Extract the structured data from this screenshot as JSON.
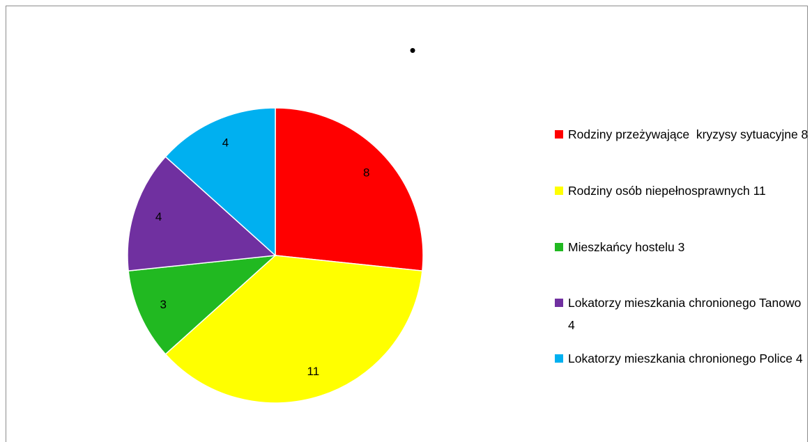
{
  "chart_data": {
    "type": "pie",
    "title": "•",
    "categories": [
      "Rodziny przeżywające  kryzysy sytuacyjne 8",
      "Rodziny osób niepełnosprawnych 11",
      "Mieszkańcy hostelu 3",
      "Lokatorzy mieszkania chronionego Tanowo  4",
      "Lokatorzy mieszkania chronionego Police 4"
    ],
    "values": [
      8,
      11,
      3,
      4,
      4
    ],
    "colors": [
      "#ff0000",
      "#ffff00",
      "#21b921",
      "#7030a0",
      "#00b0f0"
    ],
    "legend": "right"
  }
}
